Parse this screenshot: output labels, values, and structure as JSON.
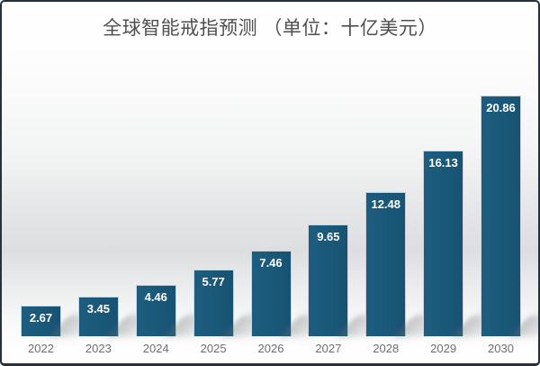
{
  "title": "全球智能戒指预测 （单位：十亿美元）",
  "chart_data": {
    "type": "bar",
    "title": "全球智能戒指预测 （单位：十亿美元）",
    "unit": "十亿美元",
    "categories": [
      "2022",
      "2023",
      "2024",
      "2025",
      "2026",
      "2027",
      "2028",
      "2029",
      "2030"
    ],
    "values": [
      2.67,
      3.45,
      4.46,
      5.77,
      7.46,
      9.65,
      12.48,
      16.13,
      20.86
    ],
    "xlabel": "",
    "ylabel": "",
    "ylim": [
      0,
      21
    ],
    "grid": false,
    "legend": false,
    "value_label_position": "inside-top"
  },
  "colors": {
    "bar": "#1a5878",
    "bar_edge": "#ccd6da",
    "value_label": "#ffffff",
    "axis_label": "#6e6e6e",
    "title": "#4f4f4f",
    "frame_border": "#25323b"
  }
}
